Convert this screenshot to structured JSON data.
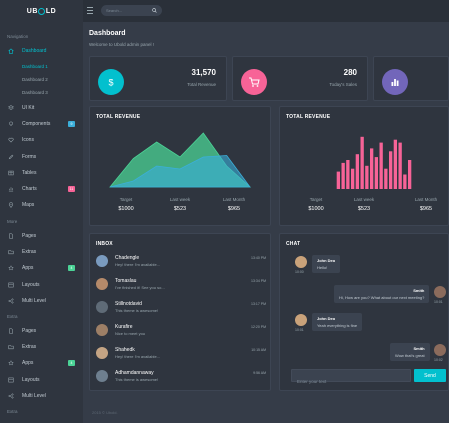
{
  "brand": {
    "logo_text_left": "UB",
    "logo_text_right": "LD"
  },
  "search": {
    "placeholder": "Search..."
  },
  "sidebar": {
    "section_navigation": "Navigation",
    "section_more": "More",
    "section_extra": "Extra",
    "section_extra_bottom": "Extra",
    "dashboard": "Dashboard",
    "dashboard_subs": [
      "Dashboard 1",
      "Dashboard 2",
      "Dashboard 3"
    ],
    "items": [
      {
        "label": "UI Kit",
        "icon": "layers-icon"
      },
      {
        "label": "Components",
        "icon": "lightbulb-icon",
        "badge": "9"
      },
      {
        "label": "Icons",
        "icon": "heart-icon"
      },
      {
        "label": "Forms",
        "icon": "pencil-icon"
      },
      {
        "label": "Tables",
        "icon": "table-icon"
      },
      {
        "label": "Charts",
        "icon": "chart-icon",
        "badge": "11"
      },
      {
        "label": "Maps",
        "icon": "pin-icon"
      }
    ],
    "more_items": [
      {
        "label": "Pages",
        "icon": "page-icon"
      },
      {
        "label": "Extras",
        "icon": "folder-icon"
      },
      {
        "label": "Apps",
        "icon": "star-icon",
        "badge": "4"
      },
      {
        "label": "Layouts",
        "icon": "layout-icon"
      },
      {
        "label": "Multi Level",
        "icon": "share-icon"
      }
    ],
    "extra_items": [
      {
        "label": "Pages",
        "icon": "page-icon"
      },
      {
        "label": "Extras",
        "icon": "folder-icon"
      },
      {
        "label": "Apps",
        "icon": "star-icon",
        "badge": "4"
      },
      {
        "label": "Layouts",
        "icon": "layout-icon"
      },
      {
        "label": "Multi Level",
        "icon": "share-icon"
      }
    ]
  },
  "page": {
    "title": "Dashboard",
    "subtitle": "Welcome to Ubold admin panel !"
  },
  "stats": [
    {
      "value": "31,570",
      "label": "Total Revenue",
      "color": "#02c0ce",
      "icon": "dollar-icon"
    },
    {
      "value": "280",
      "label": "Today's Sales",
      "color": "#f76397",
      "icon": "cart-icon"
    },
    {
      "value": "",
      "label": "",
      "color": "#7266ba",
      "icon": "bar-chart-icon"
    }
  ],
  "revenue_left": {
    "title": "TOTAL REVENUE",
    "metrics": [
      {
        "label": "Target",
        "value": "$1000"
      },
      {
        "label": "Last week",
        "value": "$523"
      },
      {
        "label": "Last Month",
        "value": "$965"
      }
    ]
  },
  "revenue_right": {
    "title": "TOTAL REVENUE",
    "metrics": [
      {
        "label": "Target",
        "value": "$1000"
      },
      {
        "label": "Last week",
        "value": "$523"
      },
      {
        "label": "Last Month",
        "value": "$965"
      }
    ]
  },
  "chart_data": [
    {
      "type": "area",
      "series": [
        {
          "values": [
            0,
            38,
            60,
            40,
            72,
            28,
            0
          ],
          "color": "#4bd396"
        },
        {
          "values": [
            0,
            8,
            28,
            24,
            40,
            42,
            0
          ],
          "color": "#3bafda"
        }
      ]
    },
    {
      "type": "bar",
      "values": [
        6,
        9,
        10,
        7,
        12,
        18,
        8,
        14,
        11,
        16,
        7,
        13,
        17,
        16,
        5,
        10
      ],
      "color": "#f76397"
    }
  ],
  "inbox": {
    "title": "INBOX",
    "items": [
      {
        "name": "Chadengle",
        "msg": "Hey! there I'm available...",
        "time": "13:40 PM"
      },
      {
        "name": "Tomaslau",
        "msg": "I've finished it! See you so...",
        "time": "13:34 PM"
      },
      {
        "name": "Stillnotdavid",
        "msg": "This theme is awesome!",
        "time": "13:17 PM"
      },
      {
        "name": "Kurafire",
        "msg": "Nice to meet you",
        "time": "12:20 PM"
      },
      {
        "name": "Shahedk",
        "msg": "Hey! there I'm available...",
        "time": "10:15 AM"
      },
      {
        "name": "Adhamdannaway",
        "msg": "This theme is awesome!",
        "time": "9:56 AM"
      }
    ]
  },
  "chat": {
    "title": "CHAT",
    "messages": [
      {
        "side": "left",
        "name": "John Deo",
        "text": "Hello!",
        "time": "10:00"
      },
      {
        "side": "right",
        "name": "Smith",
        "text": "Hi, How are you? What about our next meeting?",
        "time": "10:01"
      },
      {
        "side": "left",
        "name": "John Deo",
        "text": "Yeah everything is fine",
        "time": "10:01"
      },
      {
        "side": "right",
        "name": "Smith",
        "text": "Wow that's great",
        "time": "10:02"
      }
    ],
    "input_placeholder": "Enter your text",
    "send_label": "Send"
  },
  "footer": {
    "text": "2015 © Ubold."
  }
}
